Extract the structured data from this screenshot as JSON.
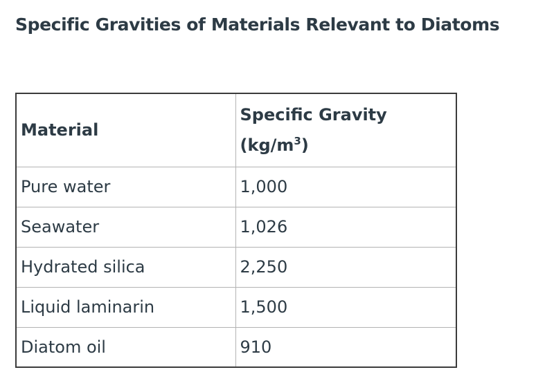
{
  "title": "Specific Gravities of Materials Relevant to Diatoms",
  "table": {
    "headers": {
      "material": "Material",
      "gravity_label": "Specific Gravity",
      "unit_prefix": "(kg/m",
      "unit_exponent": "3",
      "unit_suffix": ")"
    },
    "rows": [
      {
        "material": "Pure water",
        "gravity": "1,000"
      },
      {
        "material": "Seawater",
        "gravity": "1,026"
      },
      {
        "material": "Hydrated silica",
        "gravity": "2,250"
      },
      {
        "material": "Liquid laminarin",
        "gravity": "1,500"
      },
      {
        "material": "Diatom oil",
        "gravity": "910"
      }
    ]
  }
}
